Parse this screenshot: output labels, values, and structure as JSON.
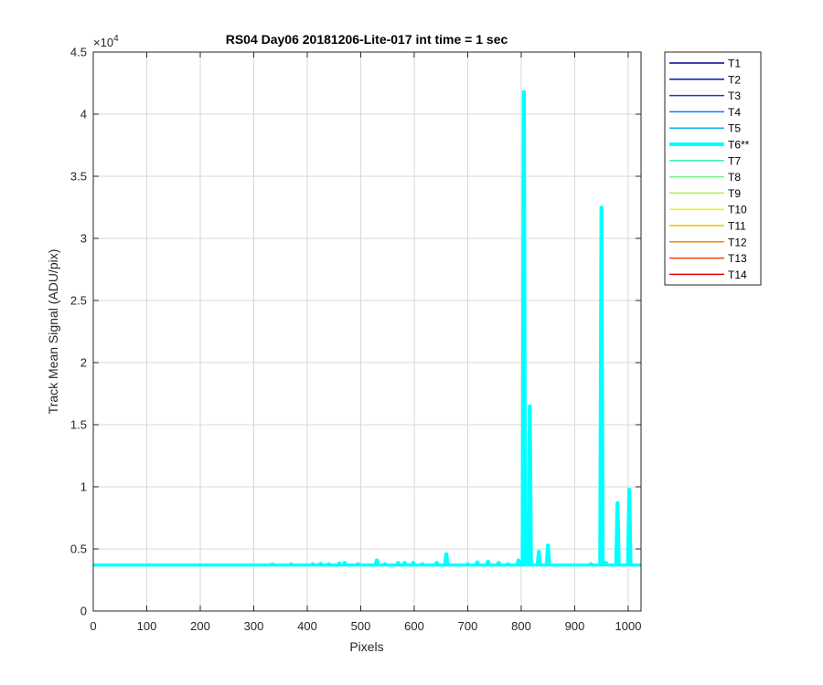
{
  "chart_data": {
    "type": "line",
    "title": "RS04 Day06 20181206-Lite-017 int time = 1 sec",
    "xlabel": "Pixels",
    "ylabel": "Track Mean Signal (ADU/pix)",
    "exponent_label": "×10",
    "exponent_power": "4",
    "xlim": [
      0,
      1024
    ],
    "ylim": [
      0,
      45000
    ],
    "xticks": [
      0,
      100,
      200,
      300,
      400,
      500,
      600,
      700,
      800,
      900,
      1000
    ],
    "xtick_labels": [
      "0",
      "100",
      "200",
      "300",
      "400",
      "500",
      "600",
      "700",
      "800",
      "900",
      "1000"
    ],
    "yticks": [
      0,
      5000,
      10000,
      15000,
      20000,
      25000,
      30000,
      35000,
      40000,
      45000
    ],
    "ytick_labels": [
      "0",
      "0.5",
      "1",
      "1.5",
      "2",
      "2.5",
      "3",
      "3.5",
      "4",
      "4.5"
    ],
    "grid": true,
    "legend_position": "outside-right",
    "baseline": 3700,
    "series": [
      {
        "name": "T1",
        "color": "#00008f",
        "highlight": false
      },
      {
        "name": "T2",
        "color": "#0014c8",
        "highlight": false
      },
      {
        "name": "T3",
        "color": "#0044e6",
        "highlight": false
      },
      {
        "name": "T4",
        "color": "#0080ff",
        "highlight": false
      },
      {
        "name": "T5",
        "color": "#00b4f5",
        "highlight": false
      },
      {
        "name": "T6**",
        "color": "#00ffff",
        "highlight": true
      },
      {
        "name": "T7",
        "color": "#40f0c0",
        "highlight": false
      },
      {
        "name": "T8",
        "color": "#70f080",
        "highlight": false
      },
      {
        "name": "T9",
        "color": "#b0f040",
        "highlight": false
      },
      {
        "name": "T10",
        "color": "#f0f000",
        "highlight": false
      },
      {
        "name": "T11",
        "color": "#f0c000",
        "highlight": false
      },
      {
        "name": "T12",
        "color": "#ff8000",
        "highlight": false
      },
      {
        "name": "T13",
        "color": "#ff4000",
        "highlight": false
      },
      {
        "name": "T14",
        "color": "#e60000",
        "highlight": false
      }
    ],
    "highlight_peaks": [
      {
        "x": 335,
        "y": 3780
      },
      {
        "x": 370,
        "y": 3780
      },
      {
        "x": 410,
        "y": 3800
      },
      {
        "x": 425,
        "y": 3820
      },
      {
        "x": 440,
        "y": 3800
      },
      {
        "x": 460,
        "y": 3850
      },
      {
        "x": 470,
        "y": 3900
      },
      {
        "x": 495,
        "y": 3800
      },
      {
        "x": 530,
        "y": 4100
      },
      {
        "x": 545,
        "y": 3800
      },
      {
        "x": 570,
        "y": 3900
      },
      {
        "x": 582,
        "y": 3900
      },
      {
        "x": 598,
        "y": 3900
      },
      {
        "x": 615,
        "y": 3800
      },
      {
        "x": 642,
        "y": 3900
      },
      {
        "x": 660,
        "y": 4600
      },
      {
        "x": 700,
        "y": 3800
      },
      {
        "x": 718,
        "y": 3950
      },
      {
        "x": 738,
        "y": 4000
      },
      {
        "x": 758,
        "y": 3900
      },
      {
        "x": 775,
        "y": 3800
      },
      {
        "x": 795,
        "y": 4100
      },
      {
        "x": 805,
        "y": 41800
      },
      {
        "x": 816,
        "y": 16500
      },
      {
        "x": 833,
        "y": 4800
      },
      {
        "x": 850,
        "y": 5300
      },
      {
        "x": 930,
        "y": 3800
      },
      {
        "x": 950,
        "y": 32500
      },
      {
        "x": 958,
        "y": 3900
      },
      {
        "x": 980,
        "y": 8700
      },
      {
        "x": 1002,
        "y": 9800
      }
    ]
  }
}
